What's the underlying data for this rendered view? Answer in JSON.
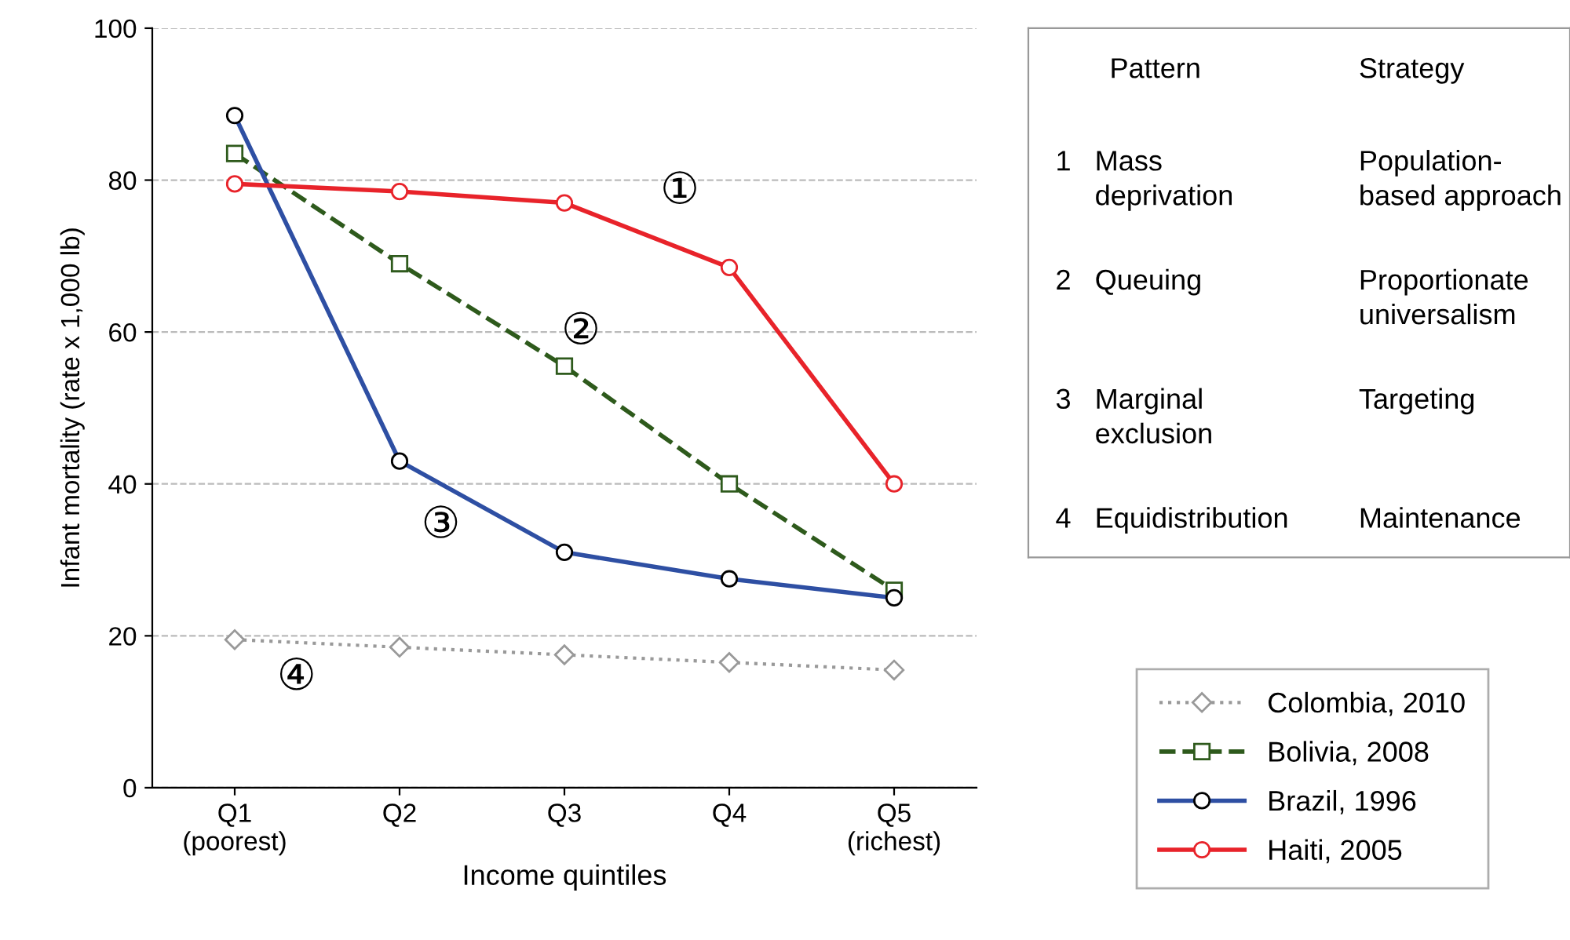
{
  "chart_data": [
    {
      "type": "line",
      "xlabel": "Income quintiles",
      "ylabel": "Infant mortality (rate x 1,000 lb)",
      "categories": [
        "Q1\n(poorest)",
        "Q2",
        "Q3",
        "Q4",
        "Q5\n(richest)"
      ],
      "series": [
        {
          "name": "Colombia, 2010",
          "color": "#999999",
          "marker": "diamond",
          "line_style": "dotted",
          "values": [
            19.5,
            18.5,
            17.5,
            16.5,
            15.5
          ]
        },
        {
          "name": "Bolivia, 2008",
          "color": "#2e5a1c",
          "marker": "square",
          "line_style": "dashed",
          "values": [
            83.5,
            69,
            55.5,
            40,
            26
          ]
        },
        {
          "name": "Brazil, 1996",
          "color": "#2e4fa3",
          "marker": "circle",
          "line_style": "solid",
          "values": [
            88.5,
            43,
            31,
            27.5,
            25
          ]
        },
        {
          "name": "Haiti, 2005",
          "color": "#e8232a",
          "marker": "circle",
          "line_style": "solid",
          "values": [
            79.5,
            78.5,
            77,
            68.5,
            40
          ]
        }
      ],
      "annotations": [
        "①",
        "②",
        "③",
        "④"
      ],
      "ylim": [
        0,
        100
      ],
      "yticks": [
        0,
        20,
        40,
        60,
        80,
        100
      ],
      "grid": "y",
      "legend": "bottom right"
    },
    {
      "type": "other",
      "annotations": [
        "Pattern",
        "Strategy",
        "1   Mass\n     deprivation",
        "Population-\nbased approach",
        "2   Queuing",
        "Proportionate\nuniversalism",
        "3   Marginal\n     exclusion",
        "Targeting",
        "4   Equidistribution",
        "Maintenance"
      ]
    }
  ]
}
